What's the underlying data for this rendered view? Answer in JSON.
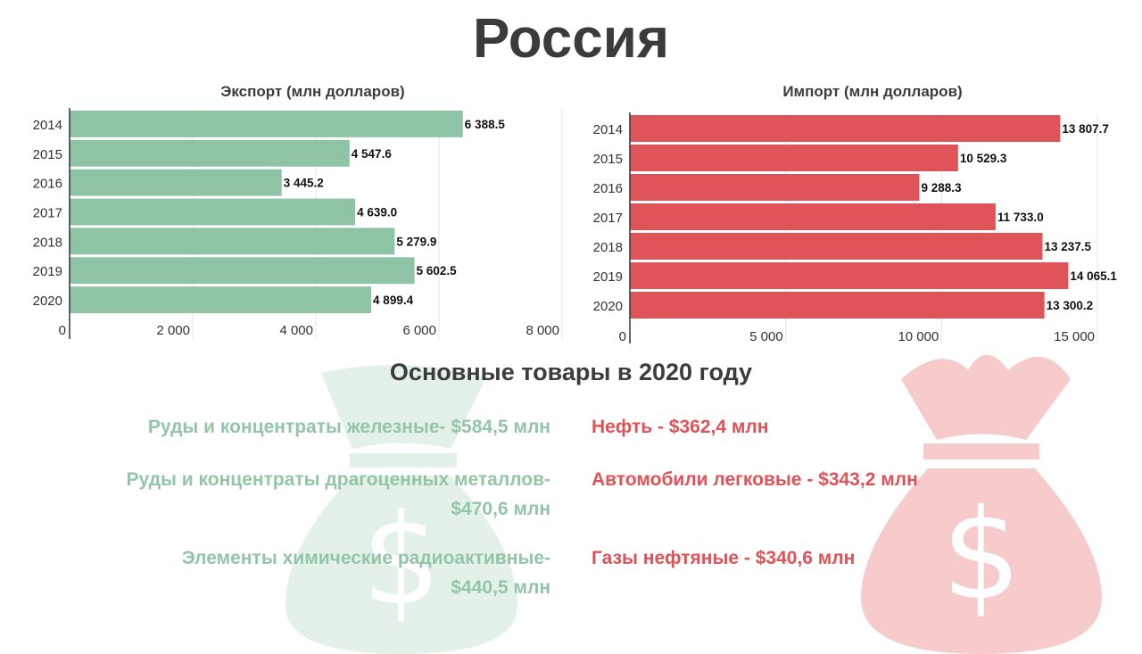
{
  "title": "Россия",
  "colors": {
    "export": "#8ec3a6",
    "import": "#df5458",
    "bag_export": "#e3f1e8",
    "bag_import": "#f7cbcb",
    "text": "#3c3c3c"
  },
  "icons": {
    "left": "money-bag-icon",
    "right": "money-bag-icon"
  },
  "chart_data": [
    {
      "type": "bar",
      "orientation": "horizontal",
      "title": "Экспорт (млн долларов)",
      "categories": [
        "2014",
        "2015",
        "2016",
        "2017",
        "2018",
        "2019",
        "2020"
      ],
      "values": [
        6388.5,
        4547.6,
        3445.2,
        4639.0,
        5279.9,
        5602.5,
        4899.4
      ],
      "value_labels": [
        "6 388.5",
        "4 547.6",
        "3 445.2",
        "4 639.0",
        "5 279.9",
        "5 602.5",
        "4 899.4"
      ],
      "xlim": [
        0,
        8000
      ],
      "x_ticks": [
        0,
        2000,
        4000,
        6000,
        8000
      ],
      "x_tick_labels": [
        "0",
        "2 000",
        "4 000",
        "6 000",
        "8 000"
      ],
      "grid": true
    },
    {
      "type": "bar",
      "orientation": "horizontal",
      "title": "Импорт (млн долларов)",
      "categories": [
        "2014",
        "2015",
        "2016",
        "2017",
        "2018",
        "2019",
        "2020"
      ],
      "values": [
        13807.7,
        10529.3,
        9288.3,
        11733.0,
        13237.5,
        14065.1,
        13300.2
      ],
      "value_labels": [
        "13 807.7",
        "10 529.3",
        "9 288.3",
        "11 733.0",
        "13 237.5",
        "14 065.1",
        "13 300.2"
      ],
      "xlim": [
        0,
        15600
      ],
      "x_ticks": [
        0,
        5000,
        10000,
        15000
      ],
      "x_tick_labels": [
        "0",
        "5 000",
        "10 000",
        "15 000"
      ],
      "grid": true
    }
  ],
  "goods": {
    "title": "Основные товары в 2020 году",
    "export": [
      {
        "line1": "Руды и концентраты железные- $584,5 млн",
        "line2": ""
      },
      {
        "line1": "Руды и концентраты драгоценных металлов-",
        "line2": "$470,6 млн"
      },
      {
        "line1": "Элементы химические радиоактивные-",
        "line2": "$440,5 млн"
      }
    ],
    "import": [
      {
        "line1": "Нефть - $362,4 млн"
      },
      {
        "line1": "Автомобили легковые  - $343,2 млн"
      },
      {
        "line1": "Газы нефтяные  - $340,6 млн"
      }
    ]
  }
}
